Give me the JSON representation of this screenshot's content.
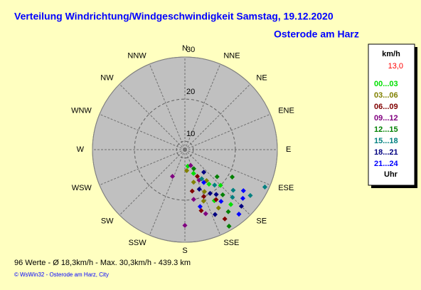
{
  "chart_data": {
    "type": "polar-scatter",
    "title": "Verteilung Windrichtung/Windgeschwindigkeit  Samstag, 19.12.2020",
    "subtitle": "Osterode am Harz",
    "directions": [
      "N",
      "NNE",
      "NE",
      "ENE",
      "E",
      "ESE",
      "SE",
      "SSE",
      "S",
      "SSW",
      "SW",
      "WSW",
      "W",
      "WNW",
      "NW",
      "NNW"
    ],
    "rlim": [
      8,
      30
    ],
    "rticks": [
      10,
      20,
      30
    ],
    "legend_title": "km/h",
    "current_value": "13,0",
    "legend_unit": "Uhr",
    "footer": "96 Werte  -   Ø 18,3km/h  -  Max. 30,3km/h  -   439.3 km",
    "credit": "© WsWin32  -  Osterode am Harz, City",
    "series": [
      {
        "name": "00...03",
        "color": "#00e000",
        "x": [
          150,
          145,
          160,
          140,
          135,
          170
        ],
        "values": [
          22,
          18,
          14,
          25,
          20,
          12
        ]
      },
      {
        "name": "03...06",
        "color": "#808000",
        "x": [
          165,
          155,
          175,
          150,
          160,
          145
        ],
        "values": [
          16,
          19,
          13,
          24,
          21,
          17
        ]
      },
      {
        "name": "06...09",
        "color": "#800000",
        "x": [
          158,
          165,
          150,
          170,
          155,
          148
        ],
        "values": [
          20,
          23,
          27,
          18,
          15,
          22
        ]
      },
      {
        "name": "09...12",
        "color": "#800080",
        "x": [
          180,
          160,
          155,
          170,
          205,
          162
        ],
        "values": [
          26,
          12,
          16,
          20,
          15,
          24
        ]
      },
      {
        "name": "12...15",
        "color": "#008000",
        "x": [
          140,
          150,
          130,
          155,
          145,
          120
        ],
        "values": [
          22,
          29,
          18,
          13,
          26,
          21
        ]
      },
      {
        "name": "15...18",
        "color": "#008080",
        "x": [
          135,
          125,
          140,
          150,
          130,
          115
        ],
        "values": [
          24,
          27,
          19,
          16,
          23,
          29
        ]
      },
      {
        "name": "18...21",
        "color": "#000080",
        "x": [
          145,
          155,
          135,
          160,
          140,
          150
        ],
        "values": [
          21,
          25,
          27,
          18,
          15,
          20
        ]
      },
      {
        "name": "21...24",
        "color": "#0000ff",
        "x": [
          130,
          140,
          165,
          150,
          145,
          125
        ],
        "values": [
          26,
          28,
          22,
          17,
          23,
          25
        ]
      }
    ]
  }
}
